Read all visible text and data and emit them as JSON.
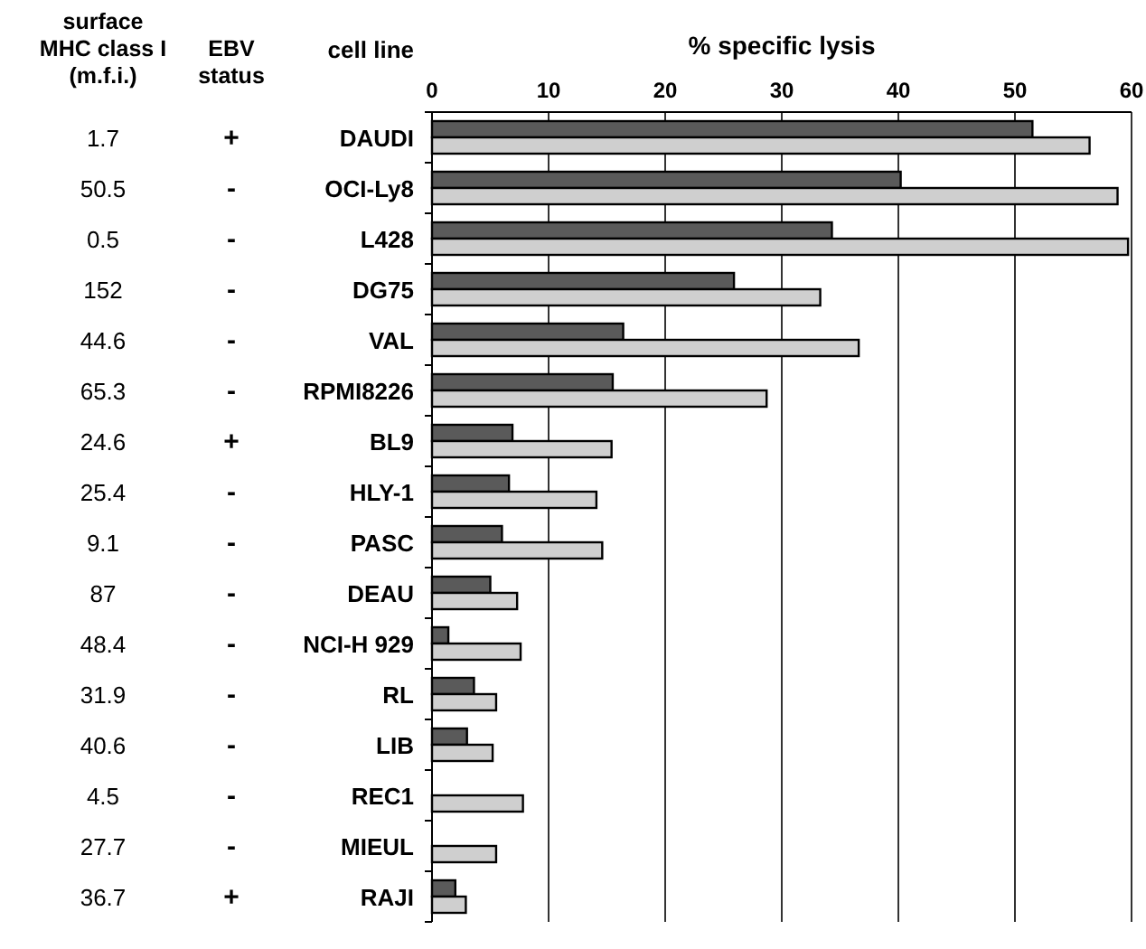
{
  "chart_data": {
    "type": "bar",
    "orientation": "horizontal",
    "xlabel": "% specific lysis",
    "ylabel": "cell line",
    "categories": [
      "DAUDI",
      "OCI-Ly8",
      "L428",
      "DG75",
      "VAL",
      "RPMI8226",
      "BL9",
      "HLY-1",
      "PASC",
      "DEAU",
      "NCI-H 929",
      "RL",
      "LIB",
      "REC1",
      "MIEUL",
      "RAJI"
    ],
    "series": [
      {
        "color": "#5a5a5a",
        "values": [
          51.5,
          40.2,
          34.3,
          25.9,
          16.4,
          15.5,
          6.9,
          6.6,
          6.0,
          5.0,
          1.4,
          3.6,
          3.0,
          null,
          null,
          2.0
        ]
      },
      {
        "color": "#cfcfcf",
        "values": [
          56.4,
          58.8,
          59.7,
          33.3,
          36.6,
          28.7,
          15.4,
          14.1,
          14.6,
          7.3,
          7.6,
          5.5,
          5.2,
          7.8,
          5.5,
          2.9
        ]
      }
    ],
    "xlim": [
      0,
      60
    ],
    "xticks": [
      0,
      10,
      20,
      30,
      40,
      50,
      60
    ],
    "grid": "x",
    "annotations": [
      "surface\nMHC class I\n(m.f.i.)",
      "EBV\nstatus",
      "1.7",
      "50.5",
      "0.5",
      "152",
      "44.6",
      "65.3",
      "24.6",
      "25.4",
      "9.1",
      "87",
      "48.4",
      "31.9",
      "40.6",
      "4.5",
      "27.7",
      "36.7",
      "+",
      "-",
      "-",
      "-",
      "-",
      "-",
      "+",
      "-",
      "-",
      "-",
      "-",
      "-",
      "-",
      "-",
      "-",
      "+"
    ]
  }
}
